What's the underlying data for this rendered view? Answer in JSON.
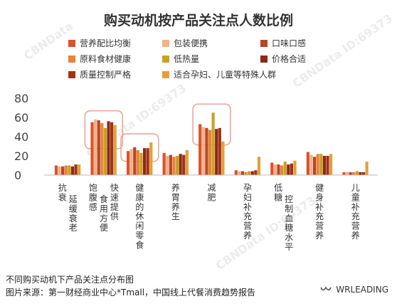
{
  "watermarks": [
    "CBNData",
    "CBNData ID:69373",
    "CBNData ID:69373",
    "CBNData ID:69373"
  ],
  "chart_data": {
    "type": "bar",
    "title": "购买动机按产品关注点人数比例",
    "ylim": [
      0,
      80
    ],
    "yticks": [
      "0",
      "20",
      "40",
      "60",
      "80"
    ],
    "legend_position": "top",
    "categories": [
      [
        "抗衰",
        "延缓衰老"
      ],
      [
        "饱腹感",
        "食用方便",
        "快速提供"
      ],
      [
        "健康的休闲零食"
      ],
      [
        "养胃养生"
      ],
      [
        "减肥"
      ],
      [
        "孕妇补充营养"
      ],
      [
        "低糖",
        "控制血糖水平"
      ],
      [
        "健身补充营养"
      ],
      [
        "儿童补充营养"
      ]
    ],
    "series": [
      {
        "name": "营养配比均衡",
        "color": "#d9532c",
        "values": [
          10,
          55,
          25,
          23,
          53,
          5,
          13,
          24,
          3
        ]
      },
      {
        "name": "包装便携",
        "color": "#f4b183",
        "values": [
          9,
          58,
          27,
          20,
          50,
          4,
          11,
          21,
          3
        ]
      },
      {
        "name": "口味口感",
        "color": "#b5472a",
        "values": [
          9,
          57,
          29,
          21,
          49,
          4,
          11,
          19,
          3
        ]
      },
      {
        "name": "原料食材健康",
        "color": "#e8833a",
        "values": [
          10,
          54,
          26,
          19,
          47,
          3,
          10,
          22,
          3
        ]
      },
      {
        "name": "低热量",
        "color": "#c8a321",
        "values": [
          10,
          49,
          23,
          20,
          65,
          4,
          14,
          22,
          4
        ]
      },
      {
        "name": "价格合适",
        "color": "#8b2a18",
        "values": [
          9,
          56,
          28,
          22,
          48,
          4,
          11,
          20,
          3
        ]
      },
      {
        "name": "质量控制严格",
        "color": "#a33218",
        "values": [
          11,
          55,
          28,
          21,
          49,
          5,
          12,
          20,
          3
        ]
      },
      {
        "name": "适合孕妇、儿童等特殊人群",
        "color": "#e0a13a",
        "values": [
          11,
          52,
          34,
          26,
          35,
          19,
          15,
          22,
          14
        ]
      }
    ],
    "highlighted_categories": [
      1,
      2,
      4
    ],
    "highlight_color": "#e8a79b"
  },
  "footer": {
    "caption": "不同购买动机下产品关注点分布图",
    "source": "图片来源：第一财经商业中心*Tmall，中国线上代餐消费趋势报告"
  },
  "brand": {
    "name": "WRLEADING",
    "logo_icon": "wr-leading-logo-icon"
  }
}
